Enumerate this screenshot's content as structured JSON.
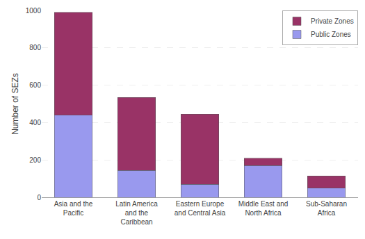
{
  "chart_data": {
    "type": "bar",
    "stacked": true,
    "categories": [
      "Asia and the\nPacific",
      "Latin America\nand the\nCaribbean",
      "Eastern Europe\nand Central Asia",
      "Middle East and\nNorth Africa",
      "Sub-Saharan\nAfrica"
    ],
    "series": [
      {
        "name": "Public Zones",
        "color": "#9999ee",
        "values": [
          440,
          145,
          70,
          170,
          50
        ]
      },
      {
        "name": "Private Zones",
        "color": "#993366",
        "values": [
          550,
          390,
          375,
          40,
          65
        ]
      }
    ],
    "ylabel": "Number of SEZs",
    "ylim": [
      0,
      1000
    ],
    "yticks": [
      0,
      200,
      400,
      600,
      800,
      1000
    ],
    "grid": true,
    "legend": "upper right"
  }
}
